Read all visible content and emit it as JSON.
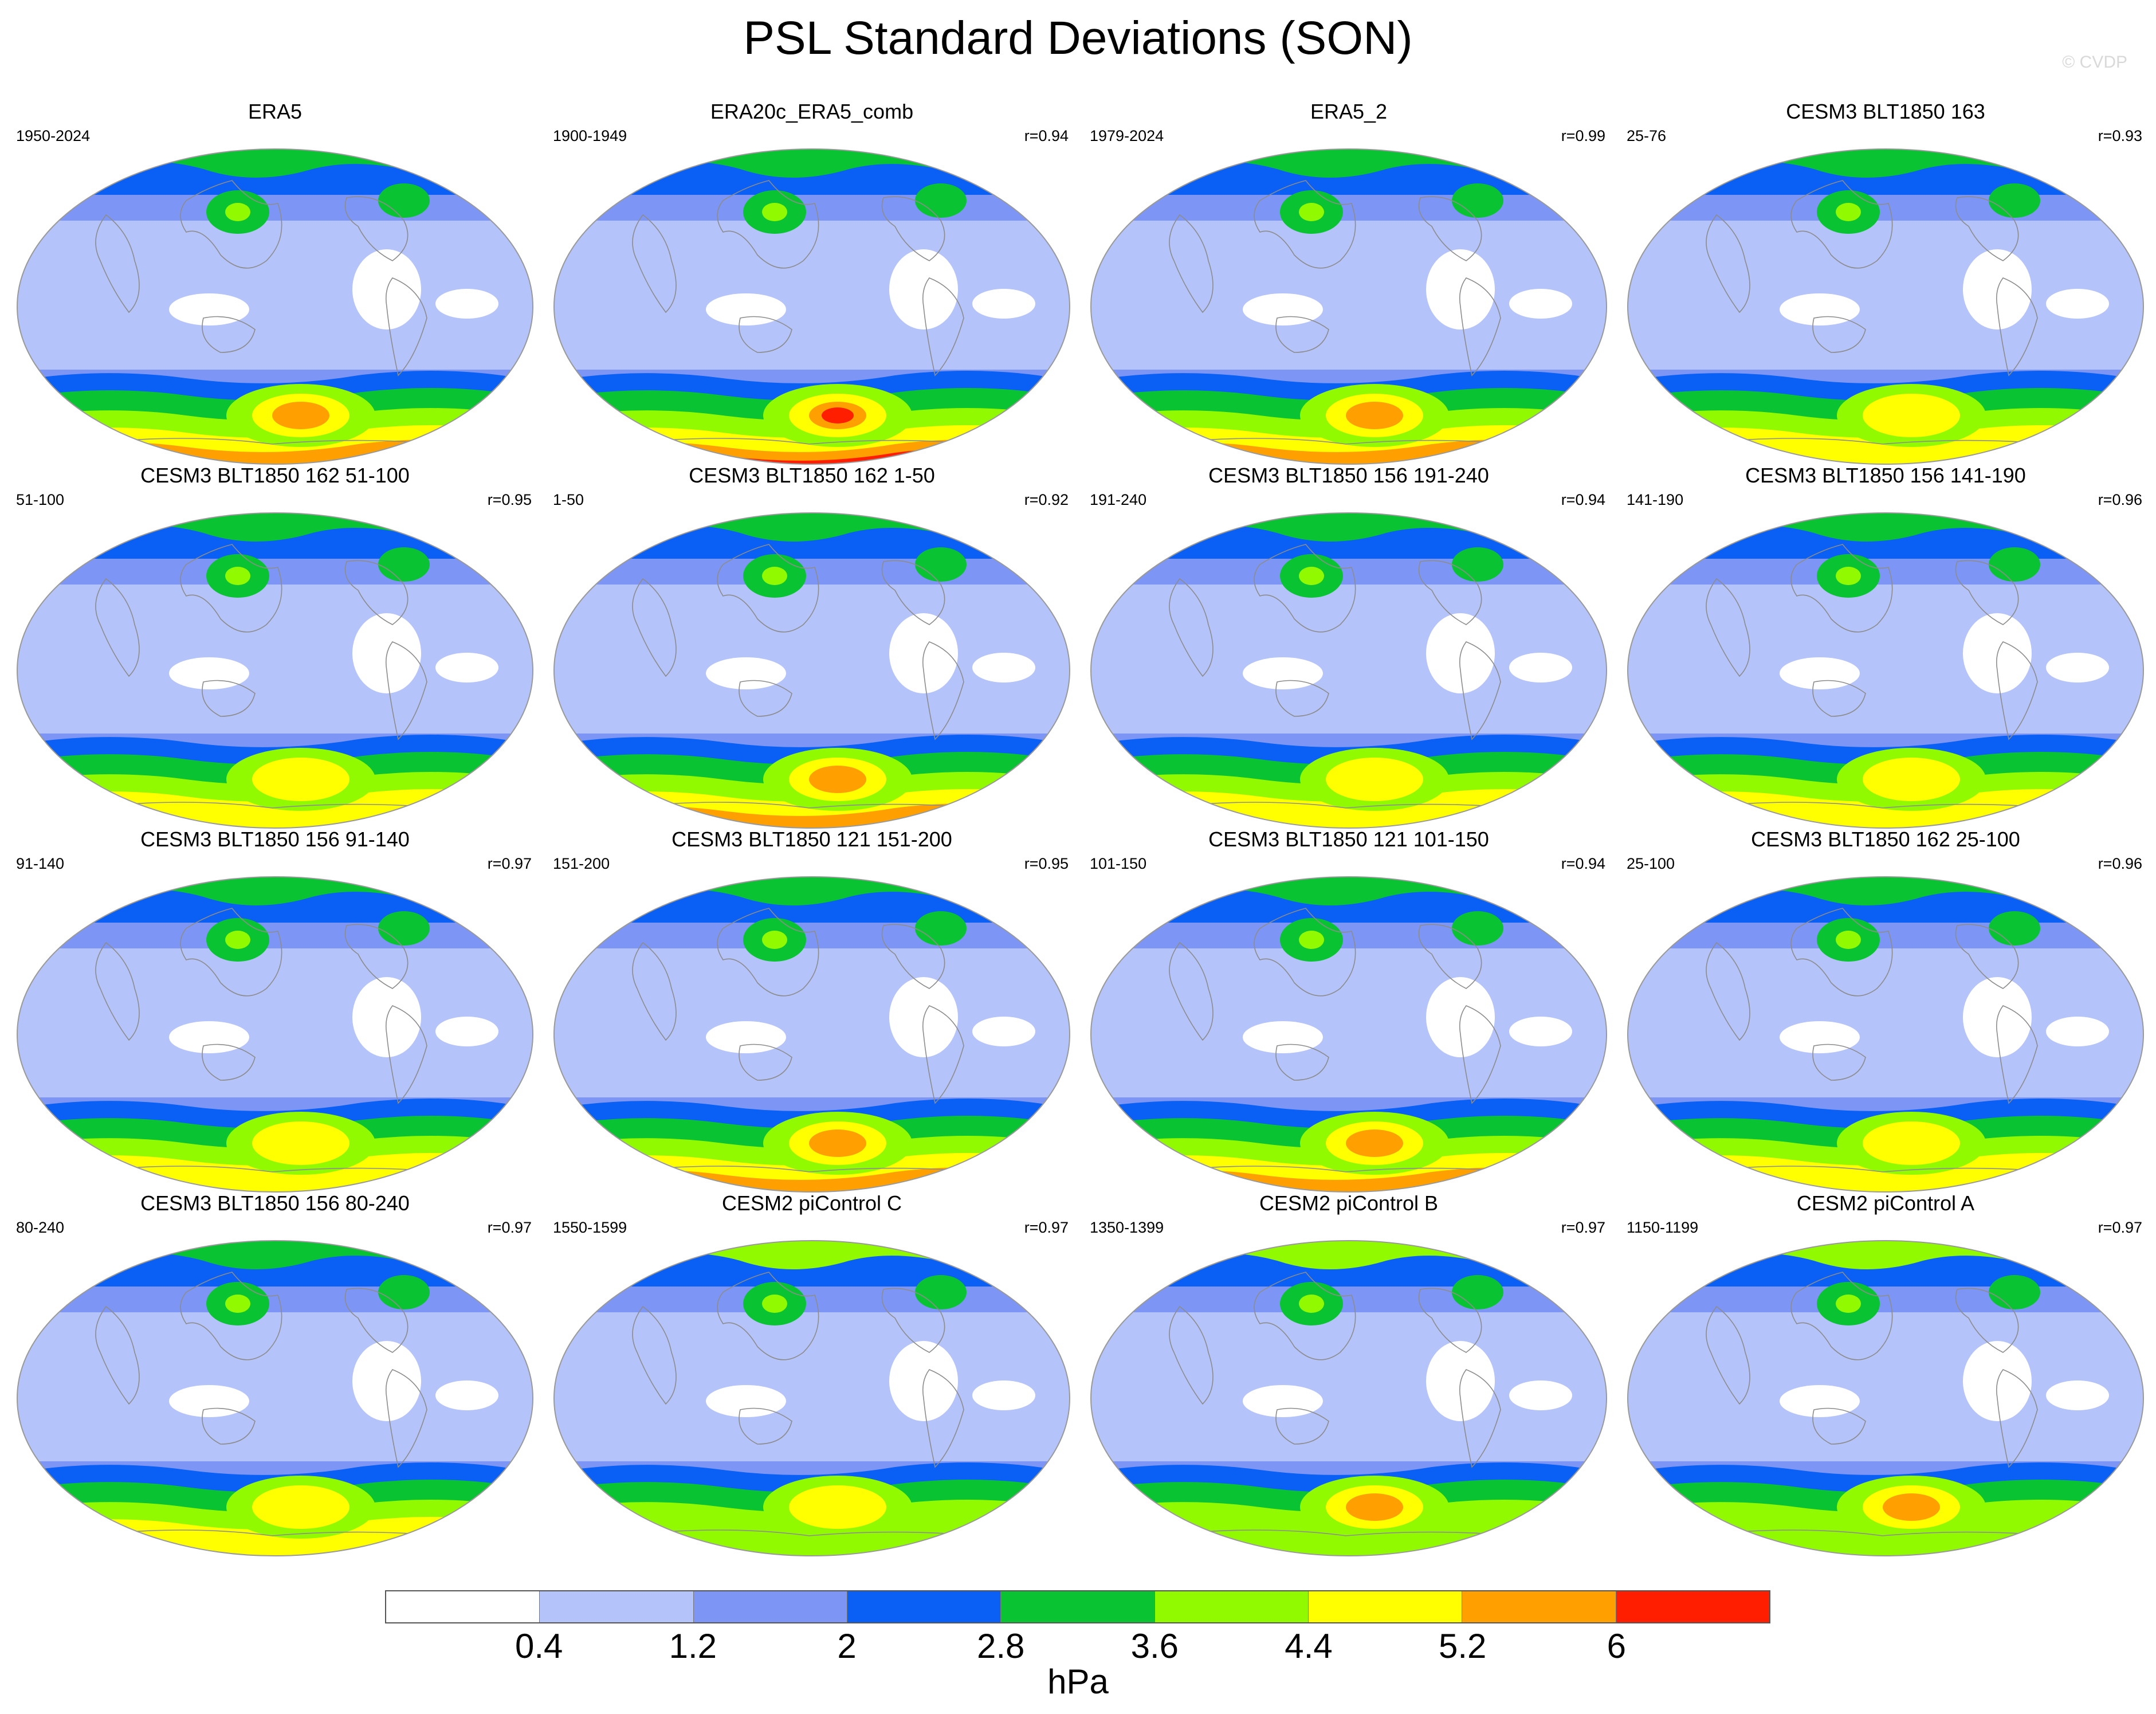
{
  "title": "PSL Standard Deviations (SON)",
  "watermark": "© CVDP",
  "panels": [
    {
      "title": "ERA5",
      "years": "1950-2024",
      "r": "",
      "style": "era5"
    },
    {
      "title": "ERA20c_ERA5_comb",
      "years": "1900-1949",
      "r": "r=0.94",
      "style": "era20c"
    },
    {
      "title": "ERA5_2",
      "years": "1979-2024",
      "r": "r=0.99",
      "style": "era5"
    },
    {
      "title": "CESM3 BLT1850 163",
      "years": "25-76",
      "r": "r=0.93",
      "style": "cesm3"
    },
    {
      "title": "CESM3 BLT1850 162 51-100",
      "years": "51-100",
      "r": "r=0.95",
      "style": "cesm3"
    },
    {
      "title": "CESM3 BLT1850 162 1-50",
      "years": "1-50",
      "r": "r=0.92",
      "style": "cesm3strong"
    },
    {
      "title": "CESM3 BLT1850 156 191-240",
      "years": "191-240",
      "r": "r=0.94",
      "style": "cesm3"
    },
    {
      "title": "CESM3 BLT1850 156 141-190",
      "years": "141-190",
      "r": "r=0.96",
      "style": "cesm3"
    },
    {
      "title": "CESM3 BLT1850 156 91-140",
      "years": "91-140",
      "r": "r=0.97",
      "style": "cesm3"
    },
    {
      "title": "CESM3 BLT1850 121 151-200",
      "years": "151-200",
      "r": "r=0.95",
      "style": "cesm3strong"
    },
    {
      "title": "CESM3 BLT1850 121 101-150",
      "years": "101-150",
      "r": "r=0.94",
      "style": "cesm3orange"
    },
    {
      "title": "CESM3 BLT1850 162 25-100",
      "years": "25-100",
      "r": "r=0.96",
      "style": "cesm3"
    },
    {
      "title": "CESM3 BLT1850 156 80-240",
      "years": "80-240",
      "r": "r=0.97",
      "style": "cesm3"
    },
    {
      "title": "CESM2 piControl C",
      "years": "1550-1599",
      "r": "r=0.97",
      "style": "cesm2"
    },
    {
      "title": "CESM2 piControl B",
      "years": "1350-1399",
      "r": "r=0.97",
      "style": "cesm2orange"
    },
    {
      "title": "CESM2 piControl A",
      "years": "1150-1199",
      "r": "r=0.97",
      "style": "cesm2orange"
    }
  ],
  "colorbar": {
    "colors": [
      "#ffffff",
      "#b4c3fa",
      "#7d96f5",
      "#0a5ff5",
      "#0ac332",
      "#91fa00",
      "#ffff00",
      "#ffa000",
      "#ff1e00"
    ],
    "labels": [
      "0.4",
      "1.2",
      "2",
      "2.8",
      "3.6",
      "4.4",
      "5.2",
      "6"
    ],
    "units": "hPa"
  }
}
